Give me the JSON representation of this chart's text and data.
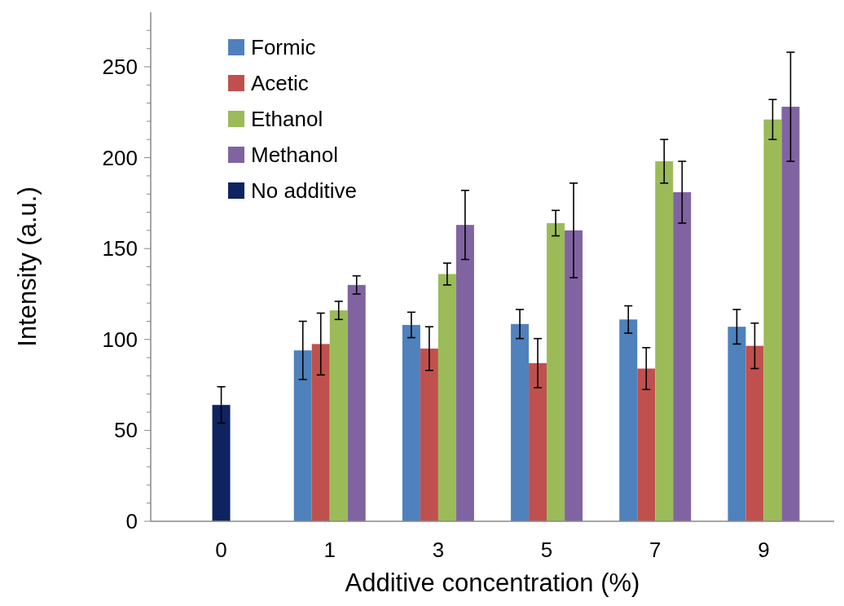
{
  "chart_data": {
    "type": "bar",
    "xlabel": "Additive concentration (%)",
    "ylabel": "Intensity (a.u.)",
    "categories": [
      "0",
      "1",
      "3",
      "5",
      "7",
      "9"
    ],
    "series": [
      {
        "name": "Formic",
        "color": "#4f81bd",
        "values": [
          null,
          94,
          108,
          108.5,
          111,
          107
        ],
        "errors": [
          null,
          16,
          7,
          8,
          7.5,
          9.5
        ]
      },
      {
        "name": "Acetic",
        "color": "#c0504d",
        "values": [
          null,
          97.5,
          95,
          87,
          84,
          96.5
        ],
        "errors": [
          null,
          17,
          12,
          13.5,
          11.5,
          12.5
        ]
      },
      {
        "name": "Ethanol",
        "color": "#9bbb59",
        "values": [
          null,
          116,
          136,
          164,
          198,
          221
        ],
        "errors": [
          null,
          5,
          6,
          7,
          12,
          11
        ]
      },
      {
        "name": "Methanol",
        "color": "#8064a2",
        "values": [
          null,
          130,
          163,
          160,
          181,
          228
        ],
        "errors": [
          null,
          5,
          19,
          26,
          17,
          30
        ]
      },
      {
        "name": "No additive",
        "color": "#0f2360",
        "values": [
          64,
          null,
          null,
          null,
          null,
          null
        ],
        "errors": [
          10,
          null,
          null,
          null,
          null,
          null
        ]
      }
    ],
    "ylim": [
      0,
      280
    ],
    "yticks": [
      0,
      {
        "value": 10,
        "label": null
      },
      {
        "value": 20,
        "label": null
      },
      {
        "value": 30,
        "label": null
      },
      {
        "value": 40,
        "label": null
      },
      50,
      {
        "value": 60,
        "label": null
      },
      {
        "value": 70,
        "label": null
      },
      {
        "value": 80,
        "label": null
      },
      {
        "value": 90,
        "label": null
      },
      100,
      {
        "value": 110,
        "label": null
      },
      {
        "value": 120,
        "label": null
      },
      {
        "value": 130,
        "label": null
      },
      {
        "value": 140,
        "label": null
      },
      150,
      {
        "value": 160,
        "label": null
      },
      {
        "value": 170,
        "label": null
      },
      {
        "value": 180,
        "label": null
      },
      {
        "value": 190,
        "label": null
      },
      200,
      {
        "value": 210,
        "label": null
      },
      {
        "value": 220,
        "label": null
      },
      {
        "value": 230,
        "label": null
      },
      {
        "value": 240,
        "label": null
      },
      250,
      {
        "value": 260,
        "label": null
      },
      {
        "value": 270,
        "label": null
      }
    ],
    "grid": false,
    "legend": "top left"
  }
}
